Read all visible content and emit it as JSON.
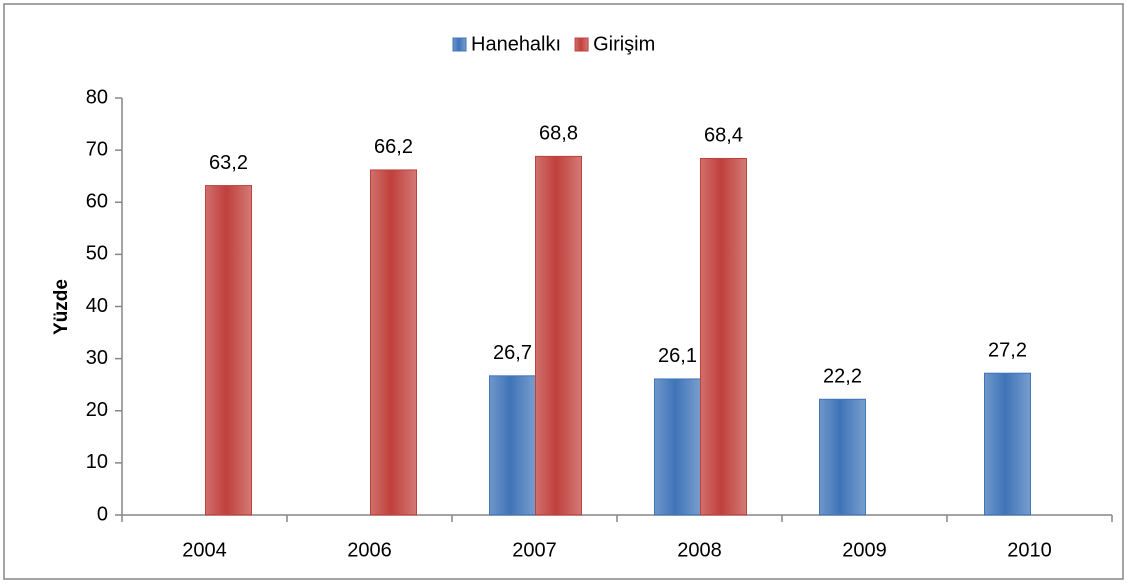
{
  "chart_data": {
    "type": "bar",
    "categories": [
      "2004",
      "2006",
      "2007",
      "2008",
      "2009",
      "2010"
    ],
    "series": [
      {
        "name": "Hanehalkı",
        "color": "#3f74b8",
        "values": [
          null,
          null,
          26.7,
          26.1,
          22.2,
          27.2
        ],
        "value_labels": [
          null,
          null,
          "26,7",
          "26,1",
          "22,2",
          "27,2"
        ]
      },
      {
        "name": "Girişim",
        "color": "#c0403c",
        "values": [
          63.2,
          66.2,
          68.8,
          68.4,
          null,
          null
        ],
        "value_labels": [
          "63,2",
          "66,2",
          "68,8",
          "68,4",
          null,
          null
        ]
      }
    ],
    "ylabel": "Yüzde",
    "ylim": [
      0,
      80
    ],
    "yticks": [
      0,
      10,
      20,
      30,
      40,
      50,
      60,
      70,
      80
    ],
    "grid": false,
    "legend": "top"
  }
}
